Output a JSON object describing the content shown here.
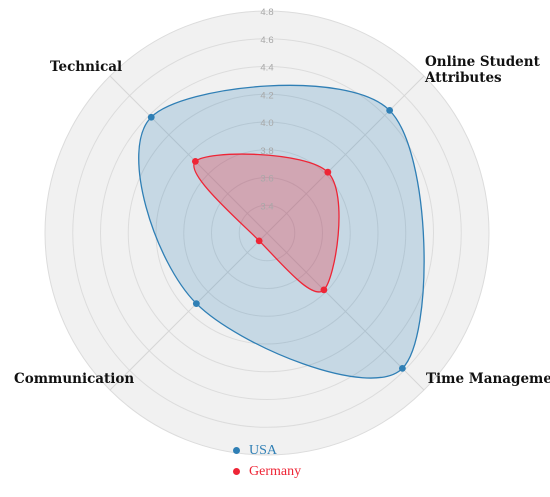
{
  "chart_data": {
    "type": "radar",
    "axes": [
      "Technical",
      "Online Student Attributes",
      "Time Management",
      "Communication"
    ],
    "axis_labels": {
      "technical": "Technical",
      "online_line1": "Online Student",
      "online_line2": "Attributes",
      "time": "Time Management",
      "communication": "Communication"
    },
    "r_ticks": [
      "3.4",
      "3.6",
      "3.8",
      "4.0",
      "4.2",
      "4.4",
      "4.6",
      "4.8"
    ],
    "r_range": [
      3.2,
      4.8
    ],
    "series": [
      {
        "name": "USA",
        "color": "#2f7fb5",
        "fill": "rgba(47,127,181,0.22)",
        "values": [
          4.38,
          4.45,
          4.58,
          3.92
        ]
      },
      {
        "name": "Germany",
        "color": "#ee2536",
        "fill": "rgba(238,37,54,0.28)",
        "values": [
          3.93,
          3.82,
          3.78,
          3.28
        ]
      }
    ],
    "legend_position": "bottom"
  }
}
